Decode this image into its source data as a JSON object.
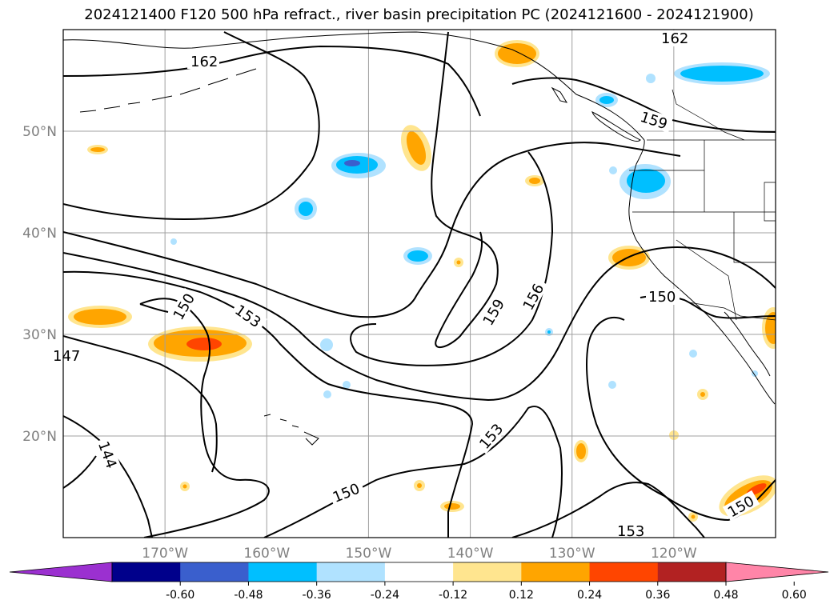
{
  "title": "2024121400 F120 500 hPa refract., river basin precipitation PC (2024121600 - 2024121900)",
  "map": {
    "lon_range": [
      -180,
      -110
    ],
    "lat_range": [
      10,
      60
    ],
    "lat_ticks": [
      {
        "lat": 20,
        "label": "20°N"
      },
      {
        "lat": 30,
        "label": "30°N"
      },
      {
        "lat": 40,
        "label": "40°N"
      },
      {
        "lat": 50,
        "label": "50°N"
      }
    ],
    "lon_ticks": [
      {
        "lon": -170,
        "label": "170°W"
      },
      {
        "lon": -160,
        "label": "160°W"
      },
      {
        "lon": -150,
        "label": "150°W"
      },
      {
        "lon": -140,
        "label": "140°W"
      },
      {
        "lon": -130,
        "label": "130°W"
      },
      {
        "lon": -120,
        "label": "120°W"
      }
    ],
    "grid": true,
    "tick_label_color": "#808080",
    "contour_labels": [
      "162",
      "162",
      "159",
      "159",
      "156",
      "153",
      "153",
      "153",
      "150",
      "150",
      "150",
      "150",
      "147",
      "144"
    ]
  },
  "colorbar": {
    "levels": [
      "-0.60",
      "-0.48",
      "-0.36",
      "-0.24",
      "-0.12",
      "0.12",
      "0.24",
      "0.36",
      "0.48",
      "0.60"
    ],
    "colors": [
      "#9b30d0",
      "#00008b",
      "#3a5fcd",
      "#00bfff",
      "#b0e2ff",
      "#ffffff",
      "#ffe58f",
      "#ffa500",
      "#ff4500",
      "#b22222",
      "#ff85a8"
    ]
  }
}
